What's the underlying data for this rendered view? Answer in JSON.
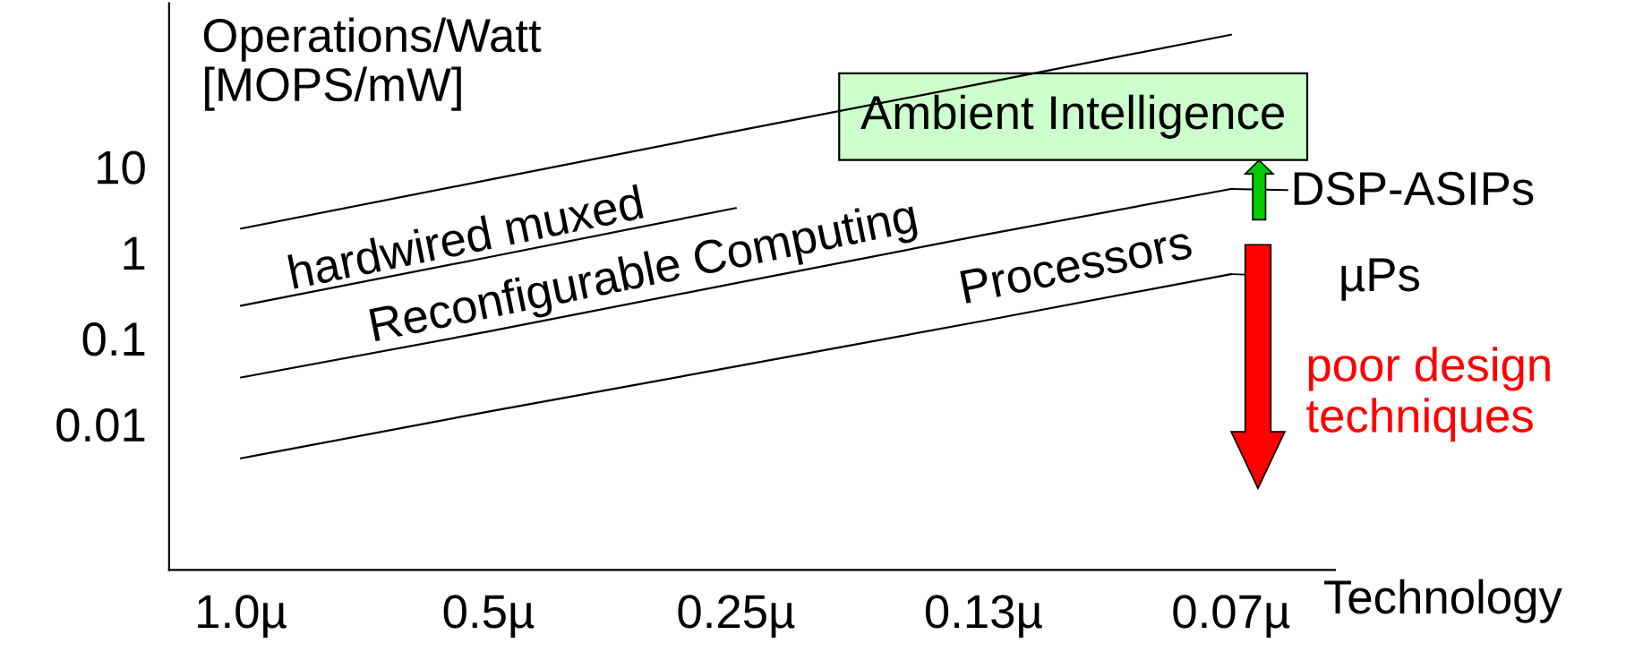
{
  "chart_data": {
    "type": "line",
    "ylabel": "Operations/Watt\n[MOPS/mW]",
    "xlabel": "Technology",
    "categories": [
      "1.0µ",
      "0.5µ",
      "0.25µ",
      "0.13µ",
      "0.07µ"
    ],
    "log": "y",
    "ylim": [
      0.0002,
      800
    ],
    "yticks": [
      0.01,
      0.1,
      1,
      10
    ],
    "grid": false,
    "legend": false,
    "series": [
      {
        "color": "#000000",
        "values": [
          1.9,
          7.0,
          26,
          94,
          345
        ]
      },
      {
        "color": "#000000",
        "values": [
          0.24,
          0.88,
          3.3,
          null,
          null
        ]
      },
      {
        "color": "#000000",
        "values": [
          0.035,
          0.12,
          0.44,
          1.6,
          5.5
        ]
      },
      {
        "color": "#000000",
        "values": [
          0.004,
          0.014,
          0.047,
          0.16,
          0.56
        ]
      }
    ],
    "annotations": [
      "hardwired muxed",
      "Reconfigurable Computing",
      "Processors",
      "Ambient Intelligence",
      {
        "text": "DSP-ASIPs",
        "x": "0.07µ",
        "y": 5.5
      },
      {
        "text": "µPs",
        "x": "0.07µ",
        "y": 0.56
      },
      "poor design\ntechniques"
    ]
  }
}
